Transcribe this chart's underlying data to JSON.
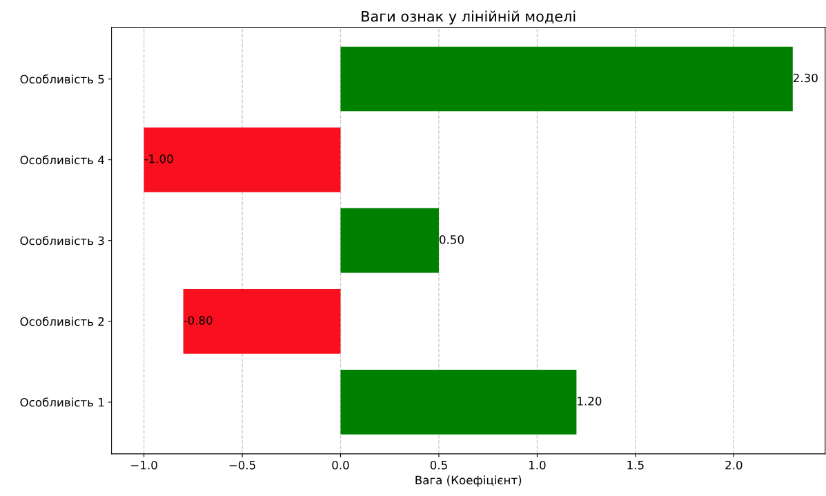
{
  "chart_data": {
    "type": "bar",
    "orientation": "horizontal",
    "title": "Ваги ознак у лінійній моделі",
    "xlabel": "Вага (Коефіцієнт)",
    "categories": [
      "Особливість 5",
      "Особливість 4",
      "Особливість 3",
      "Особливість 2",
      "Особливість 1"
    ],
    "values": [
      2.3,
      -1.0,
      0.5,
      -0.8,
      1.2
    ],
    "colors": [
      "#008000",
      "#f8101e",
      "#008000",
      "#f8101e",
      "#008000"
    ],
    "value_labels": [
      "2.30",
      "-1.00",
      "0.50",
      "-0.80",
      "1.20"
    ],
    "xlim": [
      -1.165,
      2.465
    ],
    "xticks": [
      {
        "value": -1.0,
        "label": "−1.0"
      },
      {
        "value": -0.5,
        "label": "−0.5"
      },
      {
        "value": 0.0,
        "label": "0.0"
      },
      {
        "value": 0.5,
        "label": "0.5"
      },
      {
        "value": 1.0,
        "label": "1.0"
      },
      {
        "value": 1.5,
        "label": "1.5"
      },
      {
        "value": 2.0,
        "label": "2.0"
      }
    ],
    "grid": "x",
    "line_style": "dashed"
  }
}
